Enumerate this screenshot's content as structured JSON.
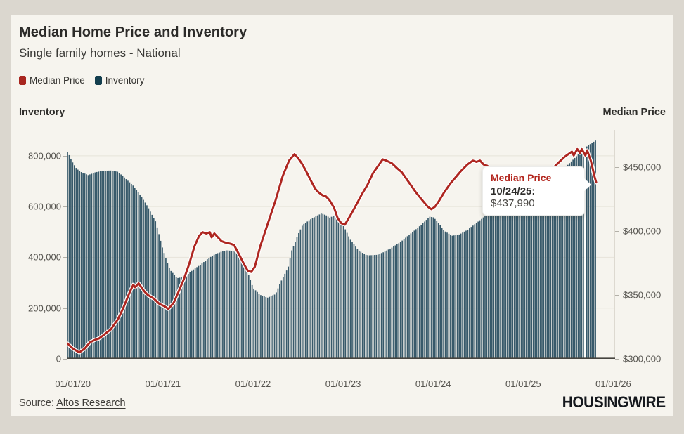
{
  "card": {
    "title": "Median Home Price and Inventory",
    "subtitle": "Single family homes - National",
    "legend": [
      {
        "label": "Median Price",
        "color": "#a8261f"
      },
      {
        "label": "Inventory",
        "color": "#133e4e"
      }
    ],
    "left_axis_title": "Inventory",
    "right_axis_title": "Median Price",
    "source_prefix": "Source:",
    "source_link": "Altos Research",
    "logo": "HOUSINGWIRE"
  },
  "tooltip": {
    "title": "Median Price",
    "date": "10/24/25:",
    "value": "$437,990"
  },
  "chart_data": {
    "type": "bar",
    "title": "Median Home Price and Inventory",
    "subtitle": "Single family homes - National",
    "x_unit": "years since 2020-01-01",
    "x_domain": [
      -0.068,
      6.02
    ],
    "x_ticks": [
      {
        "t": 0,
        "label": "01/01/20"
      },
      {
        "t": 1,
        "label": "01/01/21"
      },
      {
        "t": 2,
        "label": "01/01/22"
      },
      {
        "t": 3,
        "label": "01/01/23"
      },
      {
        "t": 4,
        "label": "01/01/24"
      },
      {
        "t": 5,
        "label": "01/01/25"
      },
      {
        "t": 6,
        "label": "01/01/26"
      }
    ],
    "inventory_axis": {
      "side": "left",
      "title": "Inventory",
      "min": 0,
      "max": 902000,
      "ticks": [
        {
          "value": 0,
          "label": "0"
        },
        {
          "value": 200000,
          "label": "200,000"
        },
        {
          "value": 400000,
          "label": "400,000"
        },
        {
          "value": 600000,
          "label": "600,000"
        },
        {
          "value": 800000,
          "label": "800,000"
        }
      ],
      "gridlines": true
    },
    "price_axis": {
      "side": "right",
      "title": "Median Price",
      "min": 300000,
      "max": 479000,
      "ticks": [
        {
          "value": 300000,
          "label": "$300,000"
        },
        {
          "value": 350000,
          "label": "$350,000"
        },
        {
          "value": 400000,
          "label": "$400,000"
        },
        {
          "value": 450000,
          "label": "$450,000"
        }
      ],
      "gridlines": false
    },
    "bar_interval_years": 0.019157,
    "hover_gap_t": 5.695,
    "last_point": {
      "date": "10/24/25",
      "t": 5.81,
      "median_price": 437990
    },
    "series": [
      {
        "name": "Inventory",
        "type": "bar",
        "color": "#37596a",
        "axis": "left",
        "points": [
          [
            -0.06,
            816000
          ],
          [
            -0.03,
            795000
          ],
          [
            0.0,
            772000
          ],
          [
            0.04,
            750000
          ],
          [
            0.08,
            738000
          ],
          [
            0.17,
            724000
          ],
          [
            0.25,
            735000
          ],
          [
            0.33,
            741000
          ],
          [
            0.42,
            742000
          ],
          [
            0.5,
            737000
          ],
          [
            0.58,
            712000
          ],
          [
            0.67,
            682000
          ],
          [
            0.75,
            645000
          ],
          [
            0.83,
            600000
          ],
          [
            0.92,
            540000
          ],
          [
            1.0,
            430000
          ],
          [
            1.08,
            350000
          ],
          [
            1.16,
            318000
          ],
          [
            1.25,
            325000
          ],
          [
            1.33,
            350000
          ],
          [
            1.42,
            372000
          ],
          [
            1.5,
            395000
          ],
          [
            1.58,
            413000
          ],
          [
            1.67,
            425000
          ],
          [
            1.71,
            428000
          ],
          [
            1.79,
            424000
          ],
          [
            1.83,
            415000
          ],
          [
            1.92,
            365000
          ],
          [
            2.0,
            280000
          ],
          [
            2.08,
            252000
          ],
          [
            2.16,
            241000
          ],
          [
            2.25,
            255000
          ],
          [
            2.31,
            305000
          ],
          [
            2.39,
            360000
          ],
          [
            2.43,
            427000
          ],
          [
            2.5,
            490000
          ],
          [
            2.55,
            528000
          ],
          [
            2.63,
            548000
          ],
          [
            2.7,
            562000
          ],
          [
            2.76,
            573000
          ],
          [
            2.81,
            566000
          ],
          [
            2.85,
            556000
          ],
          [
            2.9,
            565000
          ],
          [
            2.96,
            548000
          ],
          [
            3.0,
            528000
          ],
          [
            3.08,
            470000
          ],
          [
            3.17,
            428000
          ],
          [
            3.25,
            410000
          ],
          [
            3.29,
            408000
          ],
          [
            3.38,
            410000
          ],
          [
            3.46,
            422000
          ],
          [
            3.54,
            438000
          ],
          [
            3.63,
            458000
          ],
          [
            3.71,
            482000
          ],
          [
            3.79,
            505000
          ],
          [
            3.88,
            532000
          ],
          [
            3.96,
            560000
          ],
          [
            4.0,
            558000
          ],
          [
            4.04,
            545000
          ],
          [
            4.12,
            505000
          ],
          [
            4.21,
            485000
          ],
          [
            4.29,
            490000
          ],
          [
            4.38,
            508000
          ],
          [
            4.46,
            530000
          ],
          [
            4.54,
            552000
          ],
          [
            4.63,
            580000
          ],
          [
            4.71,
            610000
          ],
          [
            4.79,
            632000
          ],
          [
            4.88,
            650000
          ],
          [
            4.96,
            660000
          ],
          [
            5.04,
            655000
          ],
          [
            5.12,
            650000
          ],
          [
            5.21,
            668000
          ],
          [
            5.29,
            692000
          ],
          [
            5.38,
            722000
          ],
          [
            5.46,
            752000
          ],
          [
            5.54,
            780000
          ],
          [
            5.63,
            812000
          ],
          [
            5.71,
            838000
          ],
          [
            5.77,
            852000
          ],
          [
            5.81,
            862000
          ]
        ]
      },
      {
        "name": "Median Price",
        "type": "line",
        "color": "#ae2620",
        "axis": "right",
        "points": [
          [
            -0.06,
            312000
          ],
          [
            0.0,
            308000
          ],
          [
            0.07,
            305000
          ],
          [
            0.13,
            308000
          ],
          [
            0.19,
            313000
          ],
          [
            0.25,
            315000
          ],
          [
            0.29,
            316000
          ],
          [
            0.33,
            318000
          ],
          [
            0.42,
            323000
          ],
          [
            0.5,
            331000
          ],
          [
            0.56,
            340000
          ],
          [
            0.63,
            352000
          ],
          [
            0.67,
            358000
          ],
          [
            0.69,
            356000
          ],
          [
            0.73,
            359000
          ],
          [
            0.79,
            353000
          ],
          [
            0.83,
            350000
          ],
          [
            0.9,
            347000
          ],
          [
            0.96,
            343000
          ],
          [
            1.02,
            341000
          ],
          [
            1.06,
            339000
          ],
          [
            1.12,
            344000
          ],
          [
            1.17,
            352000
          ],
          [
            1.23,
            362000
          ],
          [
            1.29,
            374000
          ],
          [
            1.35,
            388000
          ],
          [
            1.4,
            396000
          ],
          [
            1.44,
            399000
          ],
          [
            1.48,
            398000
          ],
          [
            1.52,
            399000
          ],
          [
            1.54,
            395000
          ],
          [
            1.57,
            398000
          ],
          [
            1.61,
            395000
          ],
          [
            1.65,
            392000
          ],
          [
            1.69,
            391000
          ],
          [
            1.75,
            390000
          ],
          [
            1.79,
            389000
          ],
          [
            1.85,
            381000
          ],
          [
            1.9,
            374000
          ],
          [
            1.94,
            369000
          ],
          [
            1.98,
            368000
          ],
          [
            2.02,
            372000
          ],
          [
            2.08,
            388000
          ],
          [
            2.17,
            407000
          ],
          [
            2.25,
            424000
          ],
          [
            2.33,
            443000
          ],
          [
            2.4,
            455000
          ],
          [
            2.46,
            460000
          ],
          [
            2.5,
            457000
          ],
          [
            2.54,
            453000
          ],
          [
            2.58,
            448000
          ],
          [
            2.63,
            441000
          ],
          [
            2.69,
            433000
          ],
          [
            2.73,
            430000
          ],
          [
            2.77,
            428000
          ],
          [
            2.81,
            427000
          ],
          [
            2.85,
            424000
          ],
          [
            2.9,
            418000
          ],
          [
            2.94,
            410000
          ],
          [
            2.98,
            406000
          ],
          [
            3.02,
            405000
          ],
          [
            3.08,
            412000
          ],
          [
            3.15,
            421000
          ],
          [
            3.21,
            429000
          ],
          [
            3.27,
            436000
          ],
          [
            3.33,
            445000
          ],
          [
            3.4,
            452000
          ],
          [
            3.44,
            456000
          ],
          [
            3.48,
            455000
          ],
          [
            3.54,
            453000
          ],
          [
            3.6,
            449000
          ],
          [
            3.65,
            446000
          ],
          [
            3.69,
            442000
          ],
          [
            3.75,
            436000
          ],
          [
            3.81,
            430000
          ],
          [
            3.88,
            424000
          ],
          [
            3.94,
            419000
          ],
          [
            3.98,
            417000
          ],
          [
            4.02,
            419000
          ],
          [
            4.06,
            423000
          ],
          [
            4.12,
            430000
          ],
          [
            4.19,
            437000
          ],
          [
            4.25,
            442000
          ],
          [
            4.31,
            447000
          ],
          [
            4.38,
            452000
          ],
          [
            4.44,
            455000
          ],
          [
            4.48,
            454000
          ],
          [
            4.52,
            455000
          ],
          [
            4.56,
            452000
          ],
          [
            4.6,
            451000
          ],
          [
            4.65,
            447000
          ],
          [
            4.69,
            444000
          ],
          [
            4.75,
            438000
          ],
          [
            4.81,
            432000
          ],
          [
            4.88,
            426000
          ],
          [
            4.94,
            421000
          ],
          [
            4.98,
            420000
          ],
          [
            5.02,
            421000
          ],
          [
            5.08,
            425000
          ],
          [
            5.15,
            432000
          ],
          [
            5.21,
            438000
          ],
          [
            5.27,
            444000
          ],
          [
            5.33,
            449000
          ],
          [
            5.4,
            454000
          ],
          [
            5.46,
            458000
          ],
          [
            5.5,
            460000
          ],
          [
            5.54,
            462000
          ],
          [
            5.56,
            459000
          ],
          [
            5.6,
            464000
          ],
          [
            5.63,
            461000
          ],
          [
            5.65,
            464000
          ],
          [
            5.69,
            459000
          ],
          [
            5.71,
            463000
          ],
          [
            5.73,
            459000
          ],
          [
            5.75,
            455000
          ],
          [
            5.77,
            449000
          ],
          [
            5.79,
            443000
          ],
          [
            5.81,
            437990
          ]
        ]
      }
    ]
  }
}
